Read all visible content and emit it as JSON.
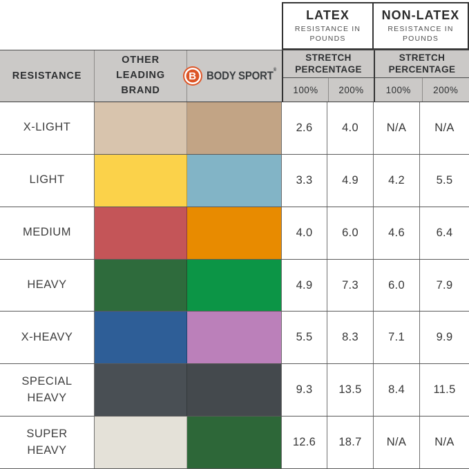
{
  "header": {
    "groups": [
      {
        "title": "LATEX",
        "subtitle": "RESISTANCE IN POUNDS"
      },
      {
        "title": "NON-LATEX",
        "subtitle": "RESISTANCE IN POUNDS"
      }
    ],
    "resistance_column_label": "RESISTANCE",
    "other_brand_column_label": "OTHER LEADING BRAND",
    "brand": {
      "initial": "B",
      "name_word_1": "BODY",
      "name_word_2": "SPORT",
      "registered_mark": "®",
      "logo_color": "#dc5527",
      "text_color": "#393d40"
    },
    "stretch_percentage_label": "STRETCH PERCENTAGE",
    "percent_columns": {
      "p100": "100%",
      "p200": "200%"
    },
    "header_background": "#cbc9c7"
  },
  "chart_data": {
    "type": "table",
    "columns": [
      "RESISTANCE",
      "OTHER LEADING BRAND",
      "BODY SPORT",
      "LATEX STRETCH 100%",
      "LATEX STRETCH 200%",
      "NON-LATEX STRETCH 100%",
      "NON-LATEX STRETCH 200%"
    ],
    "units": "resistance in pounds",
    "rows": [
      {
        "resistance": "X-LIGHT",
        "other_brand_color": "#d8c4ad",
        "body_sport_color": "#c2a485",
        "latex_100": "2.6",
        "latex_200": "4.0",
        "non_latex_100": "N/A",
        "non_latex_200": "N/A"
      },
      {
        "resistance": "LIGHT",
        "other_brand_color": "#fbd24a",
        "body_sport_color": "#82b4c6",
        "latex_100": "3.3",
        "latex_200": "4.9",
        "non_latex_100": "4.2",
        "non_latex_200": "5.5"
      },
      {
        "resistance": "MEDIUM",
        "other_brand_color": "#c45558",
        "body_sport_color": "#e88b00",
        "latex_100": "4.0",
        "latex_200": "6.0",
        "non_latex_100": "4.6",
        "non_latex_200": "6.4"
      },
      {
        "resistance": "HEAVY",
        "other_brand_color": "#2e6b3c",
        "body_sport_color": "#0c9546",
        "latex_100": "4.9",
        "latex_200": "7.3",
        "non_latex_100": "6.0",
        "non_latex_200": "7.9"
      },
      {
        "resistance": "X-HEAVY",
        "other_brand_color": "#2e5e97",
        "body_sport_color": "#bb80ba",
        "latex_100": "5.5",
        "latex_200": "8.3",
        "non_latex_100": "7.1",
        "non_latex_200": "9.9"
      },
      {
        "resistance": "SPECIAL HEAVY",
        "other_brand_color": "#494f54",
        "body_sport_color": "#44494d",
        "latex_100": "9.3",
        "latex_200": "13.5",
        "non_latex_100": "8.4",
        "non_latex_200": "11.5"
      },
      {
        "resistance": "SUPER HEAVY",
        "other_brand_color": "#e4e1d8",
        "body_sport_color": "#2d6738",
        "latex_100": "12.6",
        "latex_200": "18.7",
        "non_latex_100": "N/A",
        "non_latex_200": "N/A"
      }
    ]
  }
}
